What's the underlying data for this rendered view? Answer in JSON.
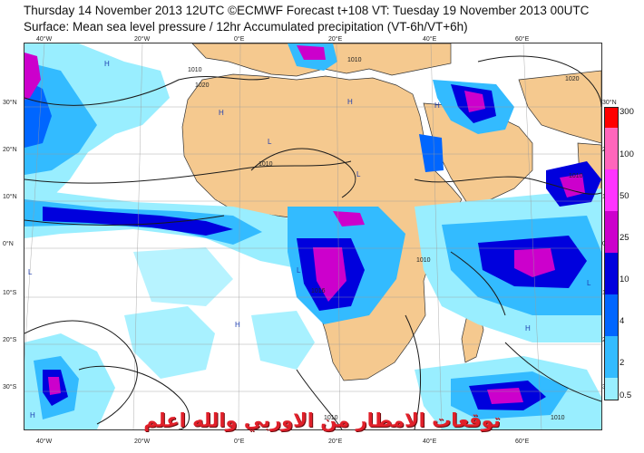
{
  "header": {
    "line1": "Thursday 14 November 2013 12UTC ©ECMWF Forecast t+108 VT: Tuesday 19 November 2013 00UTC",
    "line2": "Surface: Mean sea level pressure / 12hr Accumulated precipitation (VT-6h/VT+6h)"
  },
  "map": {
    "lat_labels": [
      "30°N",
      "20°N",
      "10°N",
      "0°N",
      "10°S",
      "20°S",
      "30°S"
    ],
    "lon_labels_top": [
      "40°W",
      "20°W",
      "0°E",
      "20°E",
      "40°E",
      "60°E"
    ],
    "lon_labels_bottom": [
      "40°W",
      "20°W",
      "0°E",
      "20°E",
      "40°E",
      "60°E"
    ],
    "isobar_labels": [
      "1010",
      "1020",
      "1010",
      "1020",
      "1016",
      "1010",
      "1010",
      "1010",
      "1010",
      "1010"
    ],
    "pressure_centres": [
      "H",
      "H",
      "H",
      "L",
      "L",
      "H",
      "L",
      "H",
      "H",
      "L",
      "H",
      "L"
    ],
    "colors": {
      "land": "#f5c98f",
      "ocean": "#ffffff",
      "isobar": "#1a1a1a"
    }
  },
  "legend": {
    "labels": [
      "300",
      "100",
      "50",
      "25",
      "10",
      "4",
      "2",
      "0.5"
    ],
    "colors": [
      "#ff0000",
      "#ff66bb",
      "#ff33ff",
      "#cc00cc",
      "#0000dd",
      "#0066ff",
      "#33bbff",
      "#99eeff"
    ]
  },
  "watermark": {
    "text": "توقعات الامطار من الاوربي والله اعلم"
  }
}
